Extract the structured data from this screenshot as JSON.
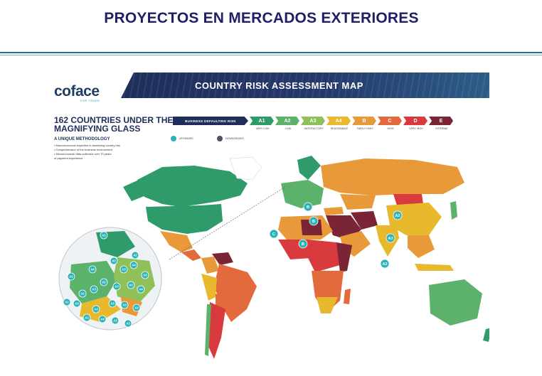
{
  "page": {
    "title": "PROYECTOS EN MERCADOS EXTERIORES"
  },
  "poster": {
    "logo": "coface",
    "logo_sub": "FOR TRADE",
    "banner_title": "COUNTRY RISK ASSESSMENT MAP",
    "headline": "162 COUNTRIES UNDER THE MAGNIFYING GLASS",
    "method_title": "A UNIQUE METHODOLOGY",
    "method_items": [
      "• Macroeconomic expertise in assessing country risk",
      "• Comprehension of the business environment",
      "• Microeconomic data collected over 70 years",
      "  of payment experience"
    ],
    "legend": {
      "title": "BUSINESS DEFAULTING RISK",
      "levels": [
        {
          "code": "A1",
          "desc": "VERY LOW",
          "color": "#2f9a6a"
        },
        {
          "code": "A2",
          "desc": "LOW",
          "color": "#5cb26b"
        },
        {
          "code": "A3",
          "desc": "SATISFACTORY",
          "color": "#8fc05a"
        },
        {
          "code": "A4",
          "desc": "REASONABLE",
          "color": "#e8b92c"
        },
        {
          "code": "B",
          "desc": "FAIRLY HIGH",
          "color": "#e89a3a"
        },
        {
          "code": "C",
          "desc": "HIGH",
          "color": "#e26a3c"
        },
        {
          "code": "D",
          "desc": "VERY HIGH",
          "color": "#d93a3e"
        },
        {
          "code": "E",
          "desc": "EXTREME",
          "color": "#7b2436"
        }
      ],
      "upgrade_label": "UPGRADES",
      "downgrade_label": "DOWNGRADES",
      "upgrade_color": "#2bb3b8",
      "downgrade_color": "#4a5560"
    },
    "map_badges": [
      "B",
      "B",
      "A2",
      "C",
      "B",
      "A3",
      "A2"
    ],
    "inset_badges": [
      "A1",
      "A2",
      "A4",
      "A3",
      "A3",
      "A2",
      "A3",
      "A2",
      "A3",
      "A3",
      "A4",
      "A2",
      "A3",
      "A2",
      "A3",
      "A3",
      "A3",
      "A3",
      "A4",
      "A3",
      "A3",
      "A2",
      "A3",
      "A4"
    ]
  }
}
